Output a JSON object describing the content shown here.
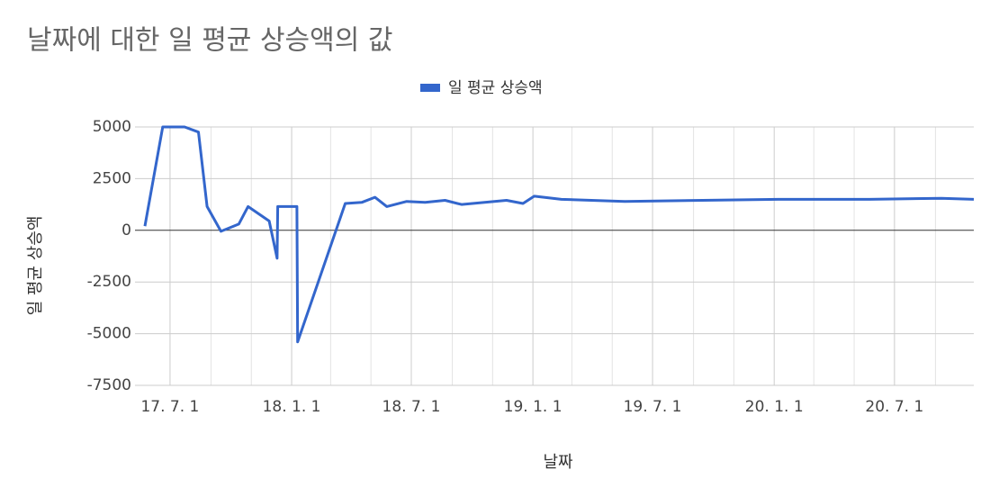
{
  "chart_data": {
    "type": "line",
    "title": "날짜에 대한 일 평균 상승액의 값",
    "x_label": "날짜",
    "y_label": "일 평균 상승액",
    "x": [
      "2017-05-24",
      "2017-06-20",
      "2017-07-23",
      "2017-08-13",
      "2017-08-26",
      "2017-09-16",
      "2017-10-13",
      "2017-10-27",
      "2017-11-28",
      "2017-12-10",
      "2017-12-11",
      "2018-01-09",
      "2018-01-10",
      "2018-03-23",
      "2018-04-17",
      "2018-05-07",
      "2018-05-25",
      "2018-06-24",
      "2018-07-22",
      "2018-08-21",
      "2018-09-15",
      "2018-11-22",
      "2018-12-17",
      "2019-01-03",
      "2019-02-13",
      "2019-05-20",
      "2020-01-07",
      "2020-05-24",
      "2020-09-10",
      "2020-10-29"
    ],
    "series": [
      {
        "name": "일 평균 상승액",
        "color": "#3366cc",
        "values": [
          200,
          5000,
          5000,
          4750,
          1150,
          -50,
          300,
          1150,
          450,
          -1350,
          1150,
          1150,
          -5400,
          1300,
          1350,
          1600,
          1150,
          1400,
          1350,
          1450,
          1250,
          1450,
          1300,
          1650,
          1500,
          1400,
          1500,
          1500,
          1550,
          1500
        ]
      }
    ],
    "xlim": [
      "2017-05-09",
      "2020-10-29"
    ],
    "xticks": [
      {
        "value": "2017-07-01",
        "label": "17. 7. 1"
      },
      {
        "value": "2018-01-01",
        "label": "18. 1. 1"
      },
      {
        "value": "2018-07-01",
        "label": "18. 7. 1"
      },
      {
        "value": "2019-01-01",
        "label": "19. 1. 1"
      },
      {
        "value": "2019-07-01",
        "label": "19. 7. 1"
      },
      {
        "value": "2020-01-01",
        "label": "20. 1. 1"
      },
      {
        "value": "2020-07-01",
        "label": "20. 7. 1"
      }
    ],
    "xminorticks": [
      "2017-09-01",
      "2017-11-01",
      "2018-03-01",
      "2018-05-01",
      "2018-09-01",
      "2018-11-01",
      "2019-03-01",
      "2019-05-01",
      "2019-09-01",
      "2019-11-01",
      "2020-03-01",
      "2020-05-01",
      "2020-09-01"
    ],
    "ylim": [
      -7500,
      5000
    ],
    "yticks": [
      5000,
      2500,
      0,
      -2500,
      -5000,
      -7500
    ],
    "grid": true,
    "legend": "top"
  }
}
